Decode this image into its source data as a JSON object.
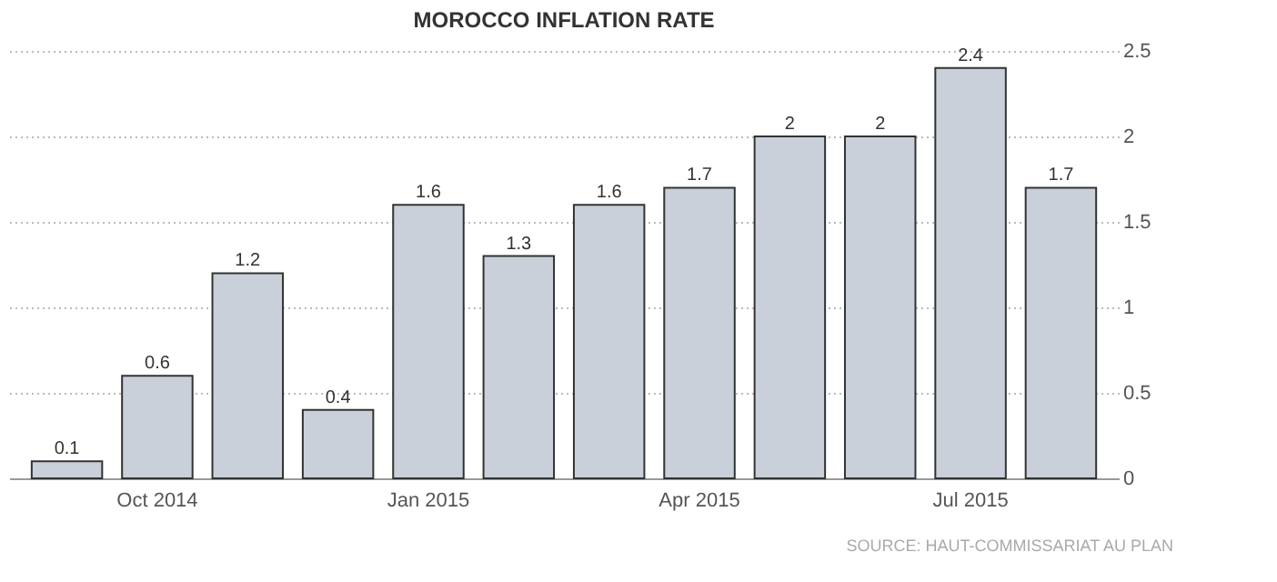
{
  "chart_data": {
    "type": "bar",
    "title": "MOROCCO INFLATION RATE",
    "categories": [
      null,
      "Oct 2014",
      null,
      null,
      "Jan 2015",
      null,
      null,
      "Apr 2015",
      null,
      null,
      "Jul 2015",
      null
    ],
    "values": [
      0.1,
      0.6,
      1.2,
      0.4,
      1.6,
      1.3,
      1.6,
      1.7,
      2,
      2,
      2.4,
      1.7
    ],
    "color": "#c9d0d9",
    "ylim": [
      0,
      2.5
    ],
    "yticks": [
      0,
      0.5,
      1,
      1.5,
      2,
      2.5
    ],
    "grid": "y",
    "data_labels": true,
    "annotations": [
      "SOURCE: HAUT-COMMISSARIAT AU PLAN"
    ]
  }
}
